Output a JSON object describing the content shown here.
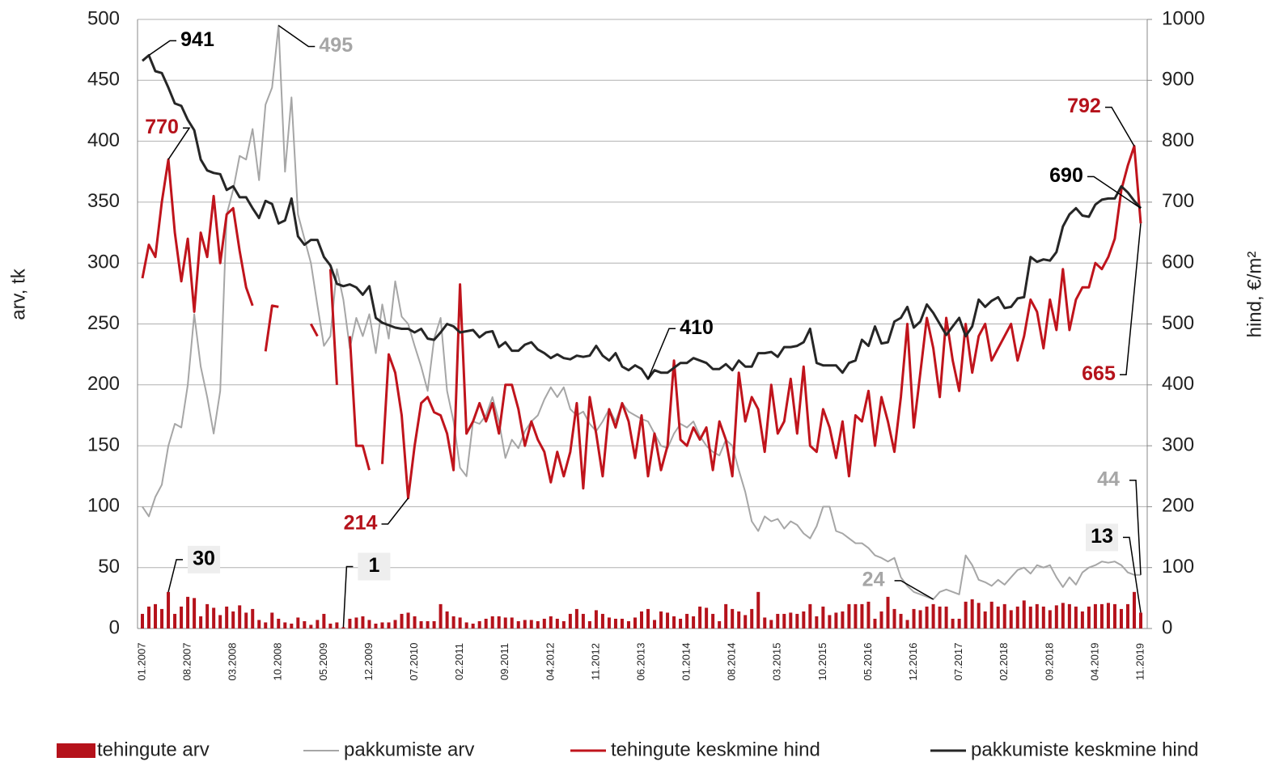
{
  "chart_data": {
    "type": "combo",
    "y_label": "arv, tk",
    "y2_label": "hind, €/m²",
    "ylim": [
      0,
      500
    ],
    "yticks": [
      0,
      50,
      100,
      150,
      200,
      250,
      300,
      350,
      400,
      450,
      500
    ],
    "y2lim": [
      0,
      1000
    ],
    "y2ticks": [
      0,
      100,
      200,
      300,
      400,
      500,
      600,
      700,
      800,
      900,
      1000
    ],
    "grid": true,
    "legend": "bottom",
    "categories": [
      "01.2007",
      null,
      null,
      null,
      null,
      null,
      null,
      "08.2007",
      null,
      null,
      null,
      null,
      null,
      null,
      "03.2008",
      null,
      null,
      null,
      null,
      null,
      null,
      "10.2008",
      null,
      null,
      null,
      null,
      null,
      null,
      "05.2009",
      null,
      null,
      null,
      null,
      null,
      null,
      "12.2009",
      null,
      null,
      null,
      null,
      null,
      null,
      "07.2010",
      null,
      null,
      null,
      null,
      null,
      null,
      "02.2011",
      null,
      null,
      null,
      null,
      null,
      null,
      "09.2011",
      null,
      null,
      null,
      null,
      null,
      null,
      "04.2012",
      null,
      null,
      null,
      null,
      null,
      null,
      "11.2012",
      null,
      null,
      null,
      null,
      null,
      null,
      "06.2013",
      null,
      null,
      null,
      null,
      null,
      null,
      "01.2014",
      null,
      null,
      null,
      null,
      null,
      null,
      "08.2014",
      null,
      null,
      null,
      null,
      null,
      null,
      "03.2015",
      null,
      null,
      null,
      null,
      null,
      null,
      "10.2015",
      null,
      null,
      null,
      null,
      null,
      null,
      "05.2016",
      null,
      null,
      null,
      null,
      null,
      null,
      "12.2016",
      null,
      null,
      null,
      null,
      null,
      null,
      "07.2017",
      null,
      null,
      null,
      null,
      null,
      null,
      "02.2018",
      null,
      null,
      null,
      null,
      null,
      null,
      "09.2018",
      null,
      null,
      null,
      null,
      null,
      null,
      "04.2019",
      null,
      null,
      null,
      null,
      null,
      null,
      "11.2019"
    ],
    "series": [
      {
        "name": "tehingute arv",
        "type": "bar",
        "color": "#b5121b",
        "label_color": "#000000",
        "labels_at": [
          4,
          31,
          154
        ],
        "values": [
          12,
          18,
          20,
          16,
          30,
          12,
          18,
          26,
          25,
          10,
          20,
          17,
          11,
          18,
          14,
          19,
          13,
          16,
          7,
          5,
          13,
          8,
          5,
          4,
          9,
          6,
          3,
          7,
          12,
          4,
          5,
          1,
          8,
          9,
          10,
          7,
          4,
          5,
          5,
          7,
          12,
          13,
          10,
          6,
          6,
          6,
          20,
          14,
          10,
          9,
          5,
          4,
          6,
          8,
          10,
          10,
          9,
          9,
          6,
          7,
          7,
          6,
          8,
          10,
          8,
          6,
          12,
          16,
          12,
          6,
          15,
          12,
          9,
          8,
          8,
          6,
          9,
          14,
          16,
          7,
          14,
          13,
          10,
          8,
          12,
          10,
          18,
          17,
          12,
          6,
          20,
          16,
          14,
          11,
          16,
          30,
          9,
          7,
          12,
          12,
          13,
          12,
          14,
          20,
          10,
          18,
          11,
          13,
          14,
          20,
          20,
          20,
          22,
          8,
          14,
          26,
          16,
          12,
          7,
          16,
          15,
          18,
          20,
          18,
          18,
          8,
          8,
          22,
          24,
          21,
          14,
          22,
          18,
          20,
          15,
          18,
          23,
          18,
          20,
          18,
          15,
          19,
          21,
          20,
          18,
          14,
          18,
          20,
          20,
          21,
          20,
          16,
          20,
          30,
          13
        ]
      },
      {
        "name": "pakkumiste arv",
        "type": "line",
        "color": "#a6a6a6",
        "label_color": "#a6a6a6",
        "labels_at": [
          21,
          122,
          154
        ],
        "values": [
          100,
          92,
          108,
          118,
          150,
          168,
          165,
          200,
          258,
          215,
          190,
          160,
          195,
          340,
          360,
          388,
          385,
          410,
          368,
          430,
          444,
          495,
          375,
          436,
          340,
          320,
          300,
          265,
          232,
          240,
          295,
          270,
          230,
          255,
          240,
          258,
          226,
          266,
          238,
          285,
          256,
          250,
          232,
          215,
          195,
          238,
          255,
          195,
          170,
          132,
          125,
          170,
          168,
          175,
          190,
          170,
          140,
          155,
          148,
          162,
          170,
          175,
          188,
          198,
          190,
          198,
          180,
          175,
          178,
          168,
          162,
          170,
          180,
          170,
          185,
          178,
          175,
          172,
          170,
          160,
          150,
          148,
          160,
          168,
          165,
          170,
          158,
          150,
          145,
          142,
          155,
          150,
          130,
          112,
          88,
          80,
          92,
          88,
          90,
          82,
          88,
          85,
          78,
          74,
          84,
          100,
          100,
          80,
          78,
          74,
          70,
          70,
          66,
          60,
          58,
          55,
          58,
          42,
          35,
          30,
          28,
          26,
          24,
          30,
          32,
          30,
          28,
          60,
          52,
          40,
          38,
          35,
          40,
          36,
          42,
          48,
          50,
          45,
          52,
          50,
          52,
          42,
          34,
          42,
          36,
          46,
          50,
          52,
          55,
          54,
          55,
          52,
          46,
          44,
          44
        ]
      },
      {
        "name": "tehingute keskmine hind",
        "type": "line",
        "axis": "y2",
        "color": "#c0141c",
        "label_color": "#b5121b",
        "labels_at": [
          4,
          41,
          153,
          154
        ],
        "values": [
          575,
          630,
          610,
          700,
          770,
          650,
          570,
          640,
          520,
          650,
          610,
          710,
          600,
          680,
          690,
          620,
          560,
          530,
          null,
          455,
          530,
          528,
          null,
          null,
          null,
          null,
          500,
          480,
          null,
          590,
          400,
          null,
          480,
          300,
          300,
          260,
          null,
          270,
          450,
          420,
          350,
          214,
          300,
          370,
          380,
          355,
          350,
          320,
          260,
          565,
          320,
          340,
          370,
          340,
          370,
          320,
          400,
          400,
          360,
          300,
          340,
          310,
          290,
          240,
          290,
          250,
          290,
          370,
          230,
          380,
          320,
          250,
          360,
          330,
          370,
          340,
          280,
          350,
          250,
          320,
          260,
          300,
          440,
          310,
          300,
          330,
          310,
          330,
          260,
          340,
          310,
          250,
          420,
          340,
          380,
          360,
          290,
          400,
          320,
          340,
          410,
          320,
          430,
          300,
          290,
          360,
          330,
          280,
          340,
          250,
          350,
          340,
          390,
          300,
          380,
          340,
          290,
          380,
          500,
          330,
          420,
          510,
          460,
          380,
          510,
          440,
          390,
          500,
          420,
          480,
          500,
          440,
          460,
          480,
          500,
          440,
          480,
          540,
          520,
          460,
          540,
          490,
          590,
          490,
          540,
          560,
          560,
          600,
          590,
          610,
          640,
          720,
          760,
          792,
          665
        ]
      },
      {
        "name": "pakkumiste keskmine hind",
        "type": "line",
        "axis": "y2",
        "color": "#262626",
        "label_color": "#000000",
        "labels_at": [
          1,
          78,
          154
        ],
        "values": [
          932,
          941,
          915,
          912,
          888,
          862,
          858,
          835,
          818,
          770,
          752,
          748,
          746,
          720,
          726,
          708,
          708,
          690,
          674,
          702,
          697,
          665,
          670,
          706,
          644,
          630,
          638,
          638,
          610,
          596,
          566,
          562,
          565,
          560,
          548,
          562,
          510,
          502,
          498,
          494,
          492,
          492,
          486,
          492,
          476,
          474,
          486,
          500,
          496,
          486,
          488,
          490,
          478,
          486,
          488,
          462,
          470,
          456,
          456,
          466,
          470,
          458,
          452,
          444,
          450,
          444,
          442,
          448,
          446,
          448,
          464,
          448,
          440,
          452,
          430,
          424,
          432,
          426,
          410,
          424,
          420,
          420,
          428,
          436,
          436,
          444,
          440,
          436,
          426,
          426,
          434,
          424,
          440,
          430,
          430,
          452,
          452,
          454,
          446,
          462,
          462,
          464,
          470,
          492,
          436,
          432,
          432,
          432,
          420,
          436,
          440,
          474,
          464,
          496,
          468,
          470,
          504,
          510,
          528,
          494,
          504,
          532,
          518,
          500,
          482,
          496,
          510,
          480,
          496,
          540,
          528,
          538,
          544,
          526,
          528,
          542,
          544,
          610,
          602,
          606,
          604,
          618,
          660,
          680,
          690,
          678,
          676,
          696,
          704,
          706,
          706,
          726,
          716,
          702,
          690
        ]
      }
    ]
  }
}
